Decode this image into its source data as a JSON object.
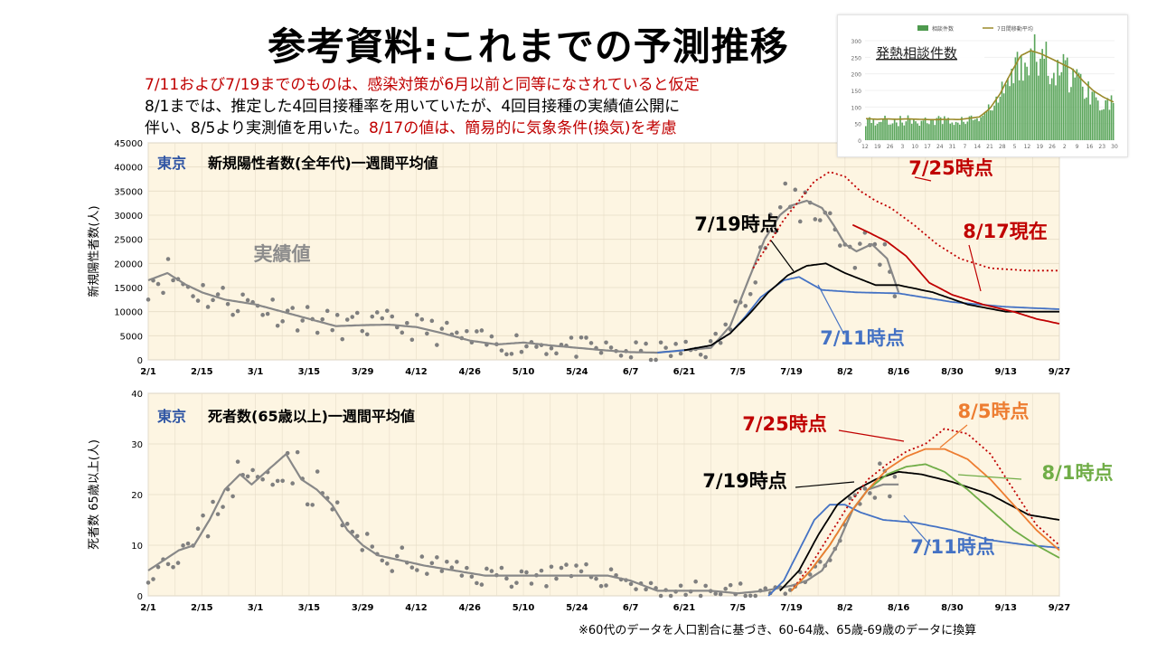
{
  "title": "参考資料:これまでの予測推移",
  "notes": {
    "line1": "7/11および7/19までのものは、感染対策が6月以前と同等になされていると仮定",
    "line2": "8/1までは、推定した4回目接種率を用いていたが、4回目接種の実績値公開に",
    "line3_black": "伴い、8/5より実測値を用いた。",
    "line3_red": "8/17の値は、簡易的に気象条件(換気)を考慮"
  },
  "footnote": "※60代のデータを人口割合に基づき、60-64歳、65歳-69歳のデータに換算",
  "colors": {
    "background_plot": "#fdf5e2",
    "actual": "#888888",
    "t0711": "#4472c4",
    "t0719": "#000000",
    "t0725": "#c00000",
    "t0801": "#70ad47",
    "t0805": "#ed7d31",
    "t0817": "#c00000"
  },
  "chart_data": [
    {
      "type": "line",
      "title": "東京　新規陽性者数(全年代)一週間平均値",
      "title_region": "東京",
      "title_rest": "新規陽性者数(全年代)一週間平均値",
      "ylabel": "新規陽性者数(人)",
      "ylim": [
        0,
        45000
      ],
      "yticks": [
        "0",
        "5000",
        "10000",
        "15000",
        "20000",
        "25000",
        "30000",
        "35000",
        "40000",
        "45000"
      ],
      "xticks": [
        "2/1",
        "2/15",
        "3/1",
        "3/15",
        "3/29",
        "4/12",
        "4/26",
        "5/10",
        "5/24",
        "6/7",
        "6/21",
        "7/5",
        "7/19",
        "8/2",
        "8/16",
        "8/30",
        "9/13",
        "9/27"
      ],
      "grid": true,
      "annotations": {
        "actual": "実績値",
        "t0719": "7/19時点",
        "t0711": "7/11時点",
        "t0725": "7/25時点",
        "t0817": "8/17現在"
      },
      "series": [
        {
          "name": "実績値",
          "key": "actual",
          "style": "solid",
          "days": [
            0,
            5,
            10,
            14,
            20,
            28,
            35,
            42,
            49,
            56,
            63,
            70,
            77,
            84,
            91,
            98,
            105,
            112,
            119,
            126,
            133,
            140,
            147,
            152,
            155,
            158,
            161,
            165,
            168,
            172,
            176,
            179,
            182,
            185,
            189,
            193,
            196
          ],
          "values": [
            16500,
            18000,
            15500,
            14000,
            12500,
            11500,
            10000,
            8500,
            7000,
            7200,
            7300,
            6800,
            5500,
            4000,
            3200,
            3600,
            3000,
            2500,
            2000,
            1600,
            1500,
            2000,
            2500,
            7000,
            13000,
            19000,
            25000,
            30000,
            32000,
            33000,
            31500,
            28000,
            24000,
            22500,
            24000,
            21000,
            14000
          ]
        },
        {
          "name": "7/11時点",
          "key": "t0711",
          "style": "solid",
          "days": [
            133,
            140,
            147,
            152,
            156,
            160,
            166,
            170,
            176,
            185,
            196,
            210,
            224,
            238
          ],
          "values": [
            1500,
            2000,
            3000,
            5500,
            9000,
            13000,
            16500,
            17200,
            14500,
            14000,
            13800,
            12000,
            11000,
            10500
          ]
        },
        {
          "name": "7/19時点",
          "key": "t0719",
          "style": "solid",
          "days": [
            140,
            147,
            152,
            157,
            162,
            167,
            172,
            177,
            182,
            190,
            196,
            205,
            214,
            224,
            238
          ],
          "values": [
            2000,
            3000,
            5500,
            9500,
            14000,
            17500,
            19500,
            20000,
            18000,
            15500,
            15500,
            14000,
            11500,
            10000,
            10000
          ]
        },
        {
          "name": "7/25時点",
          "key": "t0725",
          "style": "dotted",
          "days": [
            158,
            162,
            166,
            170,
            174,
            178,
            182,
            186,
            190,
            194,
            200,
            206,
            212,
            220,
            230,
            238
          ],
          "values": [
            19000,
            24000,
            29000,
            33000,
            37000,
            39000,
            38000,
            35000,
            33000,
            31500,
            28000,
            24000,
            21000,
            19000,
            18500,
            18500
          ]
        },
        {
          "name": "8/17現在",
          "key": "t0817",
          "style": "solid",
          "days": [
            184,
            188,
            193,
            198,
            204,
            210,
            218,
            226,
            232,
            238
          ],
          "values": [
            28000,
            26500,
            24500,
            21500,
            16000,
            13500,
            11500,
            10000,
            8500,
            7500
          ]
        }
      ],
      "scatter_seed": 11
    },
    {
      "type": "line",
      "title": "東京　死者数(65歳以上)一週間平均値",
      "title_region": "東京",
      "title_rest": "死者数(65歳以上)一週間平均値",
      "ylabel": "死者数 65歳以上(人)",
      "ylim": [
        0,
        40
      ],
      "yticks": [
        "0",
        "10",
        "20",
        "30",
        "40"
      ],
      "xticks": [
        "2/1",
        "2/15",
        "3/1",
        "3/15",
        "3/29",
        "4/12",
        "4/26",
        "5/10",
        "5/24",
        "6/7",
        "6/21",
        "7/5",
        "7/19",
        "8/2",
        "8/16",
        "8/30",
        "9/13",
        "9/27"
      ],
      "grid": true,
      "annotations": {
        "t0725": "7/25時点",
        "t0805": "8/5時点",
        "t0801": "8/1時点",
        "t0719": "7/19時点",
        "t0711": "7/11時点"
      },
      "series": [
        {
          "name": "実績値",
          "key": "actual",
          "style": "solid",
          "days": [
            0,
            4,
            8,
            12,
            16,
            20,
            24,
            27,
            30,
            33,
            36,
            40,
            44,
            48,
            52,
            56,
            60,
            66,
            72,
            80,
            88,
            96,
            104,
            112,
            120,
            126,
            133,
            140,
            147,
            154,
            161,
            168,
            172,
            176,
            180,
            184,
            188,
            192,
            196
          ],
          "values": [
            5,
            7,
            9,
            10,
            15,
            21,
            24,
            22,
            24,
            26,
            28,
            23,
            21,
            18,
            13,
            10,
            8,
            7,
            6,
            5,
            4,
            4,
            4,
            4,
            4,
            3,
            1,
            1,
            1,
            0.5,
            1,
            2,
            3,
            5,
            10,
            17,
            21,
            22,
            22
          ]
        },
        {
          "name": "7/11時点",
          "key": "t0711",
          "style": "solid",
          "days": [
            162,
            166,
            170,
            174,
            178,
            182,
            186,
            192,
            200,
            210,
            220,
            230,
            238
          ],
          "values": [
            0,
            3,
            9,
            15,
            18,
            18,
            16.5,
            15,
            14.5,
            13,
            11,
            10,
            9.5
          ]
        },
        {
          "name": "7/19時点",
          "key": "t0719",
          "style": "solid",
          "days": [
            165,
            170,
            175,
            180,
            185,
            190,
            196,
            202,
            210,
            220,
            230,
            238
          ],
          "values": [
            1,
            5,
            12,
            18,
            21,
            23,
            24.5,
            24,
            22.5,
            20,
            16,
            15
          ]
        },
        {
          "name": "7/25時点",
          "key": "t0725",
          "style": "dotted",
          "days": [
            168,
            173,
            178,
            183,
            188,
            193,
            198,
            203,
            208,
            214,
            220,
            226,
            232,
            238
          ],
          "values": [
            1,
            6,
            12,
            18,
            23,
            26,
            28.5,
            30,
            33,
            32,
            28,
            21,
            14,
            10
          ]
        },
        {
          "name": "8/1時点",
          "key": "t0801",
          "style": "solid",
          "days": [
            168,
            173,
            178,
            183,
            188,
            193,
            198,
            203,
            208,
            214,
            220,
            226,
            232,
            238
          ],
          "values": [
            1,
            5,
            10,
            16,
            21,
            24,
            25.5,
            26,
            24.5,
            21,
            17,
            13,
            10,
            7.5
          ]
        },
        {
          "name": "8/5時点",
          "key": "t0805",
          "style": "solid",
          "days": [
            168,
            173,
            178,
            183,
            188,
            193,
            198,
            203,
            208,
            214,
            220,
            226,
            232,
            238
          ],
          "values": [
            1,
            5,
            10,
            16,
            21,
            25,
            27.5,
            29,
            29,
            27,
            23,
            18,
            13,
            9
          ]
        }
      ],
      "scatter_seed": 23
    },
    {
      "type": "bar",
      "title": "発熱相談件数",
      "legend": [
        "相談件数",
        "7日間移動平均"
      ],
      "ylim": [
        0,
        300
      ],
      "yticks": [
        "0",
        "50",
        "100",
        "150",
        "200",
        "250",
        "300"
      ],
      "xticks": [
        "12",
        "19",
        "26",
        "3",
        "10",
        "17",
        "24",
        "31",
        "7",
        "14",
        "21",
        "28",
        "5",
        "12",
        "19",
        "26",
        "2",
        "9",
        "16",
        "23",
        "30"
      ],
      "values_avg": [
        65,
        63,
        64,
        63,
        64,
        63,
        62,
        62,
        63,
        62,
        66,
        70,
        95,
        140,
        200,
        255,
        270,
        260,
        245,
        230,
        215,
        180,
        150,
        130,
        115
      ]
    }
  ]
}
